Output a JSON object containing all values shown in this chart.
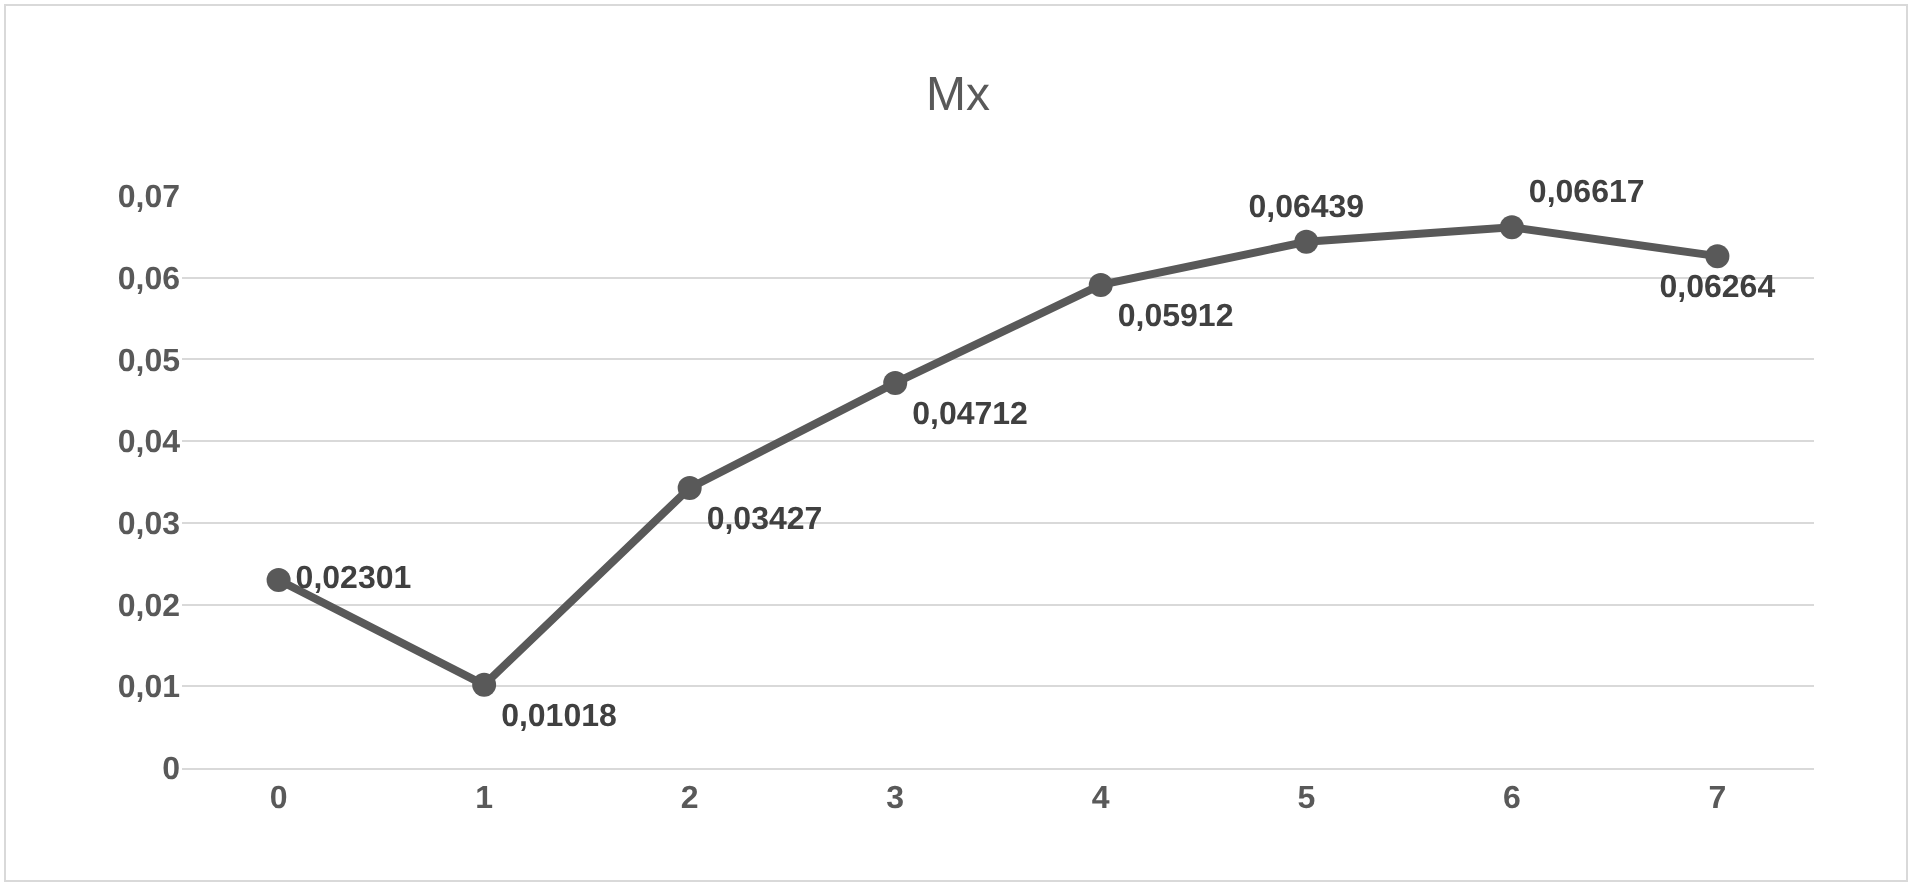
{
  "chart_data": {
    "type": "line",
    "title": "Mx",
    "categories": [
      "0",
      "1",
      "2",
      "3",
      "4",
      "5",
      "6",
      "7"
    ],
    "values": [
      0.02301,
      0.01018,
      0.03427,
      0.04712,
      0.05912,
      0.06439,
      0.06617,
      0.06264
    ],
    "value_labels": [
      "0,02301",
      "0,01018",
      "0,03427",
      "0,04712",
      "0,05912",
      "0,06439",
      "0,06617",
      "0,06264"
    ],
    "color": "#595959",
    "marker": "circle",
    "line_style": "solid",
    "ylim": [
      0,
      0.07
    ],
    "yticks": [
      {
        "value": 0,
        "label": "0"
      },
      {
        "value": 0.01,
        "label": "0,01"
      },
      {
        "value": 0.02,
        "label": "0,02"
      },
      {
        "value": 0.03,
        "label": "0,03"
      },
      {
        "value": 0.04,
        "label": "0,04"
      },
      {
        "value": 0.05,
        "label": "0,05"
      },
      {
        "value": 0.06,
        "label": "0,06"
      },
      {
        "value": 0.07,
        "label": "0,07"
      }
    ],
    "grid": "y",
    "legend": false
  }
}
